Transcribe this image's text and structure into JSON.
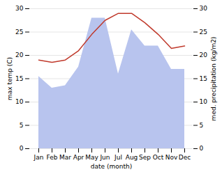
{
  "chart_data": {
    "type": "line",
    "categories": [
      "Jan",
      "Feb",
      "Mar",
      "Apr",
      "May",
      "Jun",
      "Jul",
      "Aug",
      "Sep",
      "Oct",
      "Nov",
      "Dec"
    ],
    "xlabel": "date (month)",
    "ylabel": "max temp (C)",
    "y2label": "med. precipitation (kg/m2)",
    "ylim": [
      0,
      30
    ],
    "yticks": [
      0,
      5,
      10,
      15,
      20,
      25,
      30
    ],
    "y2lim": [
      0,
      30
    ],
    "y2ticks": [
      0,
      5,
      10,
      15,
      20,
      25,
      30
    ],
    "grid": true,
    "series": [
      {
        "type": "area",
        "color": "#b8c4ee",
        "values": [
          15.5,
          13.0,
          13.5,
          17.5,
          28.0,
          28.0,
          16.0,
          25.5,
          22.0,
          22.0,
          17.0,
          17.0
        ]
      },
      {
        "type": "line",
        "axis": "y2",
        "color": "#c0392b",
        "values": [
          19.0,
          18.5,
          19.0,
          21.0,
          24.5,
          27.5,
          29.0,
          29.0,
          27.0,
          24.5,
          21.5,
          22.0
        ]
      }
    ]
  }
}
